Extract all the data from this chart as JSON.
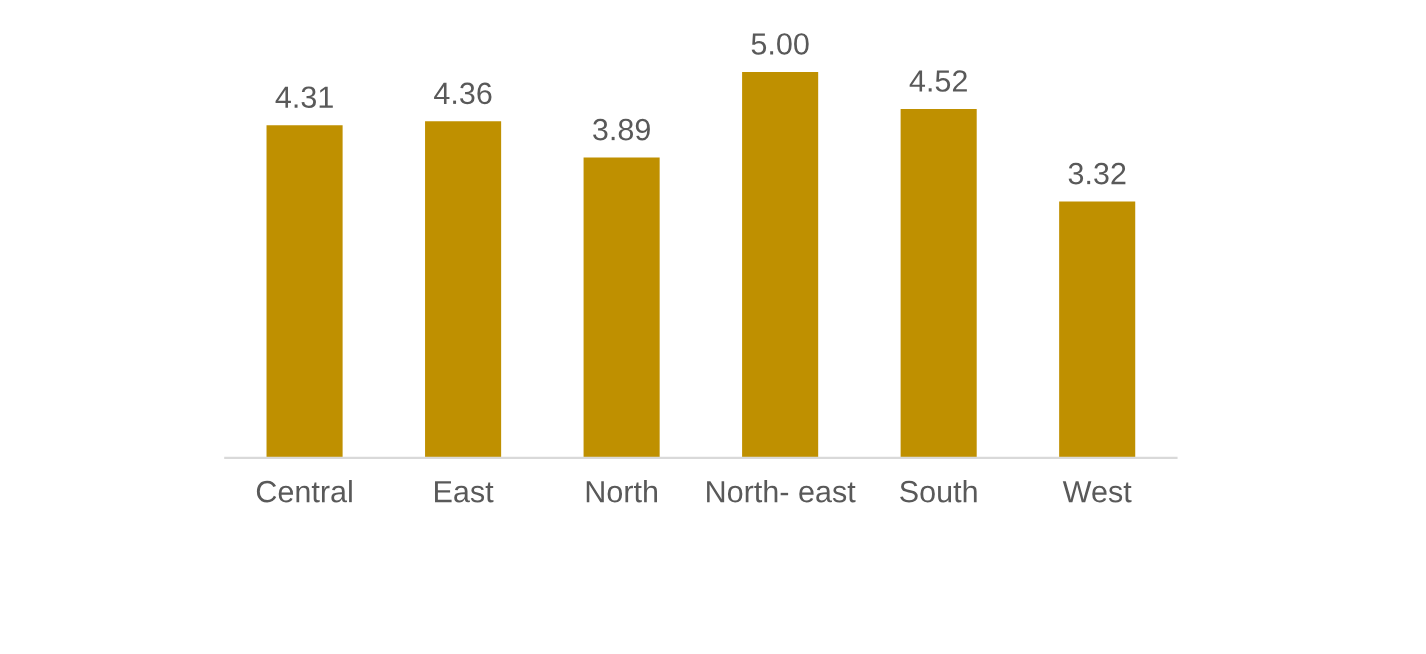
{
  "chart_data": {
    "type": "bar",
    "categories": [
      "Central",
      "East",
      "North",
      "North- east",
      "South",
      "West"
    ],
    "values": [
      4.31,
      4.36,
      3.89,
      5.0,
      4.52,
      3.32
    ],
    "value_labels": [
      "4.31",
      "4.36",
      "3.89",
      "5.00",
      "4.52",
      "3.32"
    ],
    "color": "#bf9000",
    "grid": false,
    "legend": false
  }
}
